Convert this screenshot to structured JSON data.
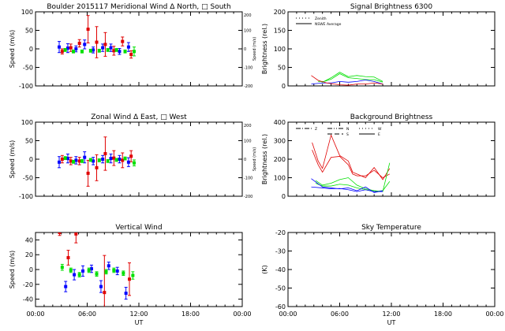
{
  "colors": {
    "blue": "#0000ff",
    "red": "#e00000",
    "green": "#00e000"
  },
  "xaxis": {
    "label": "UT",
    "ticks": [
      "00:00",
      "06:00",
      "12:00",
      "18:00",
      "00:00"
    ],
    "range": [
      0,
      24
    ]
  },
  "chart_data": [
    {
      "id": "meridional",
      "type": "scatter",
      "title": "Boulder   2015117     Meridional Wind   Δ North, □ South",
      "ylabel": "Speed (m/s)",
      "ylim": [
        -100,
        100
      ],
      "yticks": [
        "100",
        "50",
        "0",
        "-50",
        "-100"
      ],
      "y2label": "Speed (m/s)",
      "y2ticks": [
        "200",
        "100",
        "0",
        "-100",
        "-200"
      ],
      "show_xticklabels": false,
      "series": [
        {
          "color": "blue",
          "points": [
            [
              2.75,
              5,
              15
            ],
            [
              3.75,
              2,
              12
            ],
            [
              4.7,
              0,
              8
            ],
            [
              5.7,
              12,
              12
            ],
            [
              6.7,
              -3,
              8
            ],
            [
              7.8,
              3,
              10
            ],
            [
              8.75,
              3,
              10
            ],
            [
              9.75,
              -7,
              8
            ],
            [
              10.8,
              5,
              12
            ]
          ]
        },
        {
          "color": "red",
          "points": [
            [
              3.1,
              -7,
              7
            ],
            [
              4.1,
              3,
              10
            ],
            [
              5.1,
              15,
              10
            ],
            [
              6.1,
              53,
              37
            ],
            [
              7.1,
              18,
              42
            ],
            [
              8.1,
              12,
              32
            ],
            [
              9.1,
              -5,
              12
            ],
            [
              10.1,
              20,
              12
            ],
            [
              11.1,
              -15,
              10
            ]
          ]
        },
        {
          "color": "green",
          "points": [
            [
              3.45,
              -3,
              4
            ],
            [
              4.4,
              -7,
              4
            ],
            [
              5.4,
              -7,
              4
            ],
            [
              6.4,
              -5,
              4
            ],
            [
              7.4,
              -5,
              4
            ],
            [
              8.4,
              -3,
              4
            ],
            [
              9.4,
              -3,
              4
            ],
            [
              10.4,
              -7,
              4
            ],
            [
              11.45,
              -7,
              12
            ]
          ]
        }
      ]
    },
    {
      "id": "zonal",
      "type": "scatter",
      "title": "Zonal Wind      Δ East, □ West",
      "ylabel": "Speed (m/s)",
      "ylim": [
        -100,
        100
      ],
      "yticks": [
        "100",
        "50",
        "0",
        "-50",
        "-100"
      ],
      "y2label": "Speed (m/s)",
      "y2ticks": [
        "200",
        "100",
        "0",
        "-100",
        "-200"
      ],
      "show_xticklabels": false,
      "series": [
        {
          "color": "blue",
          "points": [
            [
              2.75,
              -8,
              15
            ],
            [
              3.75,
              2,
              12
            ],
            [
              4.7,
              -3,
              10
            ],
            [
              5.7,
              5,
              15
            ],
            [
              6.7,
              -5,
              10
            ],
            [
              7.8,
              0,
              10
            ],
            [
              8.75,
              2,
              12
            ],
            [
              9.75,
              0,
              10
            ],
            [
              10.8,
              -8,
              12
            ]
          ]
        },
        {
          "color": "red",
          "points": [
            [
              3.1,
              0,
              10
            ],
            [
              4.1,
              -5,
              10
            ],
            [
              5.1,
              -5,
              10
            ],
            [
              6.1,
              -38,
              35
            ],
            [
              7.1,
              -23,
              35
            ],
            [
              8.1,
              15,
              45
            ],
            [
              9.1,
              3,
              20
            ],
            [
              10.1,
              -3,
              20
            ],
            [
              11.1,
              8,
              15
            ]
          ]
        },
        {
          "color": "green",
          "points": [
            [
              3.45,
              3,
              4
            ],
            [
              4.4,
              -7,
              4
            ],
            [
              5.4,
              -5,
              4
            ],
            [
              6.4,
              -2,
              4
            ],
            [
              7.4,
              -3,
              4
            ],
            [
              8.4,
              -5,
              4
            ],
            [
              9.4,
              -2,
              4
            ],
            [
              10.4,
              2,
              4
            ],
            [
              11.45,
              -10,
              8
            ]
          ]
        }
      ]
    },
    {
      "id": "vertical",
      "type": "scatter",
      "title": "Vertical Wind",
      "ylabel": "Speed (m/s)",
      "ylim": [
        -50,
        50
      ],
      "yticks": [
        "40",
        "20",
        "0",
        "-20",
        "-40"
      ],
      "ytickvals": [
        40,
        20,
        0,
        -20,
        -40
      ],
      "show_xticklabels": true,
      "series": [
        {
          "color": "red",
          "points": [
            [
              2.8,
              50,
              4
            ],
            [
              3.8,
              16,
              10
            ],
            [
              4.7,
              48,
              12
            ],
            [
              8.0,
              -31,
              50
            ],
            [
              10.9,
              -13,
              22
            ]
          ]
        },
        {
          "color": "blue",
          "points": [
            [
              3.5,
              -23,
              7
            ],
            [
              4.5,
              -7,
              7
            ],
            [
              5.5,
              -2,
              7
            ],
            [
              6.5,
              1,
              5
            ],
            [
              7.6,
              -23,
              8
            ],
            [
              8.5,
              5,
              5
            ],
            [
              9.5,
              -2,
              5
            ],
            [
              10.5,
              -32,
              8
            ]
          ]
        },
        {
          "color": "green",
          "points": [
            [
              3.1,
              3,
              4
            ],
            [
              4.1,
              -1,
              3
            ],
            [
              5.1,
              -7,
              3
            ],
            [
              6.2,
              -1,
              3
            ],
            [
              7.1,
              -6,
              3
            ],
            [
              8.2,
              -3,
              3
            ],
            [
              9.1,
              -1,
              3
            ],
            [
              10.2,
              -5,
              3
            ],
            [
              11.3,
              -8,
              5
            ]
          ]
        }
      ]
    },
    {
      "id": "signal",
      "type": "line",
      "title": "Signal Brightness      6300",
      "ylabel": "Brightness (rel.)",
      "ylim": [
        0,
        200
      ],
      "yticks": [
        "200",
        "150",
        "100",
        "50",
        "0"
      ],
      "show_xticklabels": false,
      "legend": {
        "placement": "top-left",
        "entries": [
          {
            "label": "Zenith",
            "style": "dotted"
          },
          {
            "label": "NSWE Average",
            "style": "solid"
          }
        ]
      },
      "series": [
        {
          "color": "green",
          "points": [
            [
              3.5,
              15
            ],
            [
              4,
              10
            ],
            [
              5,
              22
            ],
            [
              6,
              37
            ],
            [
              7,
              25
            ],
            [
              8,
              28
            ],
            [
              9,
              25
            ],
            [
              10,
              24
            ],
            [
              11,
              12
            ]
          ]
        },
        {
          "color": "green",
          "points": [
            [
              3.5,
              12
            ],
            [
              4.2,
              12
            ],
            [
              5,
              18
            ],
            [
              6,
              33
            ],
            [
              7,
              22
            ],
            [
              8,
              20
            ],
            [
              9,
              17
            ],
            [
              10,
              17
            ],
            [
              11,
              10
            ]
          ]
        },
        {
          "color": "blue",
          "points": [
            [
              2.7,
              5
            ],
            [
              4,
              8
            ],
            [
              5,
              8
            ],
            [
              6,
              12
            ],
            [
              7,
              10
            ],
            [
              8,
              12
            ],
            [
              9,
              16
            ],
            [
              10,
              12
            ],
            [
              11,
              5
            ]
          ]
        },
        {
          "color": "red",
          "points": [
            [
              2.7,
              28
            ],
            [
              3.5,
              15
            ],
            [
              4.5,
              8
            ],
            [
              6,
              3
            ],
            [
              7,
              2
            ],
            [
              8,
              5
            ],
            [
              9,
              5
            ],
            [
              10,
              8
            ],
            [
              11,
              5
            ]
          ]
        }
      ]
    },
    {
      "id": "background",
      "type": "line",
      "title": "Background Brightness",
      "ylabel": "Brightness (rel.)",
      "ylim": [
        0,
        400
      ],
      "yticks": [
        "400",
        "300",
        "200",
        "100",
        "0"
      ],
      "show_xticklabels": false,
      "legend": {
        "placement": "top-left",
        "entries": [
          {
            "label": "Z",
            "style": "dashdot"
          },
          {
            "label": "N",
            "style": "dashdotdot"
          },
          {
            "label": "S",
            "style": "dashed"
          },
          {
            "label": "W",
            "style": "dotted"
          },
          {
            "label": "E",
            "style": "solid"
          }
        ]
      },
      "series": [
        {
          "color": "red",
          "points": [
            [
              2.8,
              290
            ],
            [
              3.5,
              190
            ],
            [
              4,
              150
            ],
            [
              5,
              330
            ],
            [
              6,
              220
            ],
            [
              7,
              190
            ],
            [
              7.5,
              130
            ],
            [
              8,
              120
            ],
            [
              9,
              100
            ],
            [
              10,
              155
            ],
            [
              11,
              90
            ],
            [
              11.8,
              150
            ]
          ]
        },
        {
          "color": "red",
          "points": [
            [
              2.8,
              250
            ],
            [
              3.5,
              170
            ],
            [
              4,
              130
            ],
            [
              5,
              210
            ],
            [
              6,
              215
            ],
            [
              7,
              170
            ],
            [
              7.5,
              120
            ],
            [
              8,
              110
            ],
            [
              9,
              110
            ],
            [
              10,
              140
            ],
            [
              11,
              100
            ],
            [
              11.8,
              120
            ]
          ]
        },
        {
          "color": "green",
          "points": [
            [
              3.2,
              85
            ],
            [
              4,
              60
            ],
            [
              5,
              70
            ],
            [
              6,
              90
            ],
            [
              7,
              100
            ],
            [
              8,
              60
            ],
            [
              9,
              40
            ],
            [
              10,
              30
            ],
            [
              11,
              25
            ],
            [
              11.8,
              180
            ]
          ]
        },
        {
          "color": "green",
          "points": [
            [
              3.2,
              70
            ],
            [
              4,
              55
            ],
            [
              5,
              55
            ],
            [
              6,
              65
            ],
            [
              7,
              60
            ],
            [
              8,
              45
            ],
            [
              9,
              35
            ],
            [
              10,
              25
            ],
            [
              11,
              30
            ],
            [
              11.8,
              80
            ]
          ]
        },
        {
          "color": "blue",
          "points": [
            [
              2.7,
              95
            ],
            [
              4,
              50
            ],
            [
              5,
              45
            ],
            [
              6,
              40
            ],
            [
              7,
              45
            ],
            [
              8,
              30
            ],
            [
              9,
              50
            ],
            [
              10,
              20
            ],
            [
              11,
              30
            ]
          ]
        },
        {
          "color": "blue",
          "points": [
            [
              2.7,
              50
            ],
            [
              4,
              45
            ],
            [
              5,
              40
            ],
            [
              6,
              42
            ],
            [
              7,
              35
            ],
            [
              8,
              25
            ],
            [
              9,
              35
            ],
            [
              10,
              25
            ],
            [
              11,
              25
            ]
          ]
        }
      ]
    },
    {
      "id": "skytemp",
      "type": "line",
      "title": "Sky Temperature",
      "ylabel": "(K)",
      "ylim": [
        -60,
        -20
      ],
      "yticks": [
        "-20",
        "-30",
        "-40",
        "-50",
        "-60"
      ],
      "show_xticklabels": true,
      "series": []
    }
  ]
}
